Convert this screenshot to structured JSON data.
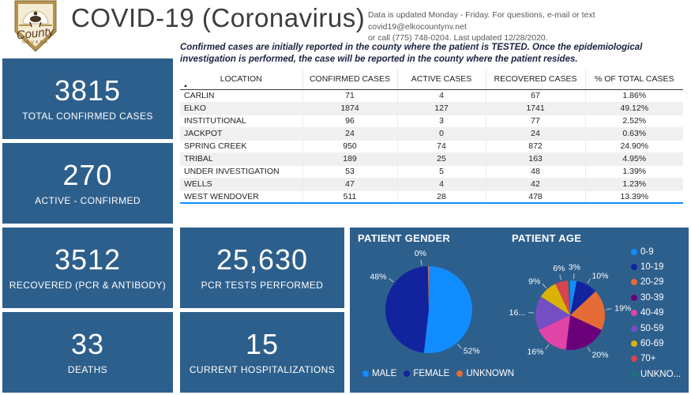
{
  "header": {
    "title": "COVID-19 (Coronavirus)",
    "info_line1": "Data is updated Monday - Friday.  For questions, e-mail or text covid19@elkocountynv.net",
    "info_line2": "or call (775) 748-0204.  Last updated 12/28/2020.",
    "disclaimer": "Confirmed cases are initially reported in the county where the patient is TESTED.  Once the epidemiological investigation is performed, the case will be reported in the county where the patient resides.",
    "logo": {
      "script_text": "County",
      "sub_text": "NEVADA"
    }
  },
  "stats": [
    {
      "value": "3815",
      "label": "TOTAL CONFIRMED CASES"
    },
    {
      "value": "270",
      "label": "ACTIVE - CONFIRMED"
    },
    {
      "value": "3512",
      "label": "RECOVERED (PCR & ANTIBODY)"
    },
    {
      "value": "33",
      "label": "DEATHS"
    },
    {
      "value": "25,630",
      "label": "PCR TESTS PERFORMED"
    },
    {
      "value": "15",
      "label": "CURRENT HOSPITALIZATIONS"
    }
  ],
  "table": {
    "columns": [
      "LOCATION",
      "CONFIRMED CASES",
      "ACTIVE CASES",
      "RECOVERED CASES",
      "% OF TOTAL CASES"
    ],
    "sort_indicator": "▲",
    "rows": [
      [
        "CARLIN",
        "71",
        "4",
        "67",
        "1.86%"
      ],
      [
        "ELKO",
        "1874",
        "127",
        "1741",
        "49.12%"
      ],
      [
        "INSTITUTIONAL",
        "96",
        "3",
        "77",
        "2.52%"
      ],
      [
        "JACKPOT",
        "24",
        "0",
        "24",
        "0.63%"
      ],
      [
        "SPRING CREEK",
        "950",
        "74",
        "872",
        "24.90%"
      ],
      [
        "TRIBAL",
        "189",
        "25",
        "163",
        "4.95%"
      ],
      [
        "UNDER INVESTIGATION",
        "53",
        "5",
        "48",
        "1.39%"
      ],
      [
        "WELLS",
        "47",
        "4",
        "42",
        "1.23%"
      ],
      [
        "WEST WENDOVER",
        "511",
        "28",
        "478",
        "13.39%"
      ]
    ]
  },
  "colors": {
    "card_blue": "#2d5f8c",
    "table_accent_line": "#118DFF"
  },
  "chart_data": [
    {
      "type": "pie",
      "title": "PATIENT GENDER",
      "legend_position": "bottom",
      "slices": [
        {
          "name": "MALE",
          "value": 52,
          "label": "52%",
          "color": "#118DFF",
          "label_angle_deg": 140
        },
        {
          "name": "FEMALE",
          "value": 48,
          "label": "48%",
          "color": "#12239E",
          "label_angle_deg": 308
        },
        {
          "name": "UNKNOWN",
          "value": 0,
          "label": "0%",
          "color": "#E66C37",
          "label_angle_deg": 351
        }
      ]
    },
    {
      "type": "pie",
      "title": "PATIENT AGE",
      "legend_position": "right",
      "slices": [
        {
          "name": "0-9",
          "value": 3,
          "label": "3%",
          "color": "#118DFF"
        },
        {
          "name": "10-19",
          "value": 10,
          "label": "10%",
          "color": "#12239E"
        },
        {
          "name": "20-29",
          "value": 19,
          "label": "19%",
          "color": "#E66C37"
        },
        {
          "name": "30-39",
          "value": 20,
          "label": "20%",
          "color": "#6B007B"
        },
        {
          "name": "40-49",
          "value": 16,
          "label": "16%",
          "color": "#E044A7"
        },
        {
          "name": "50-59",
          "value": 16,
          "label": "16...",
          "color": "#744EC2"
        },
        {
          "name": "60-69",
          "value": 9,
          "label": "9%",
          "color": "#D9B300"
        },
        {
          "name": "70+",
          "value": 6,
          "label": "6%",
          "color": "#D64550"
        },
        {
          "name": "UNKNO...",
          "value": 1,
          "label": "",
          "color": "#197278"
        }
      ]
    }
  ]
}
